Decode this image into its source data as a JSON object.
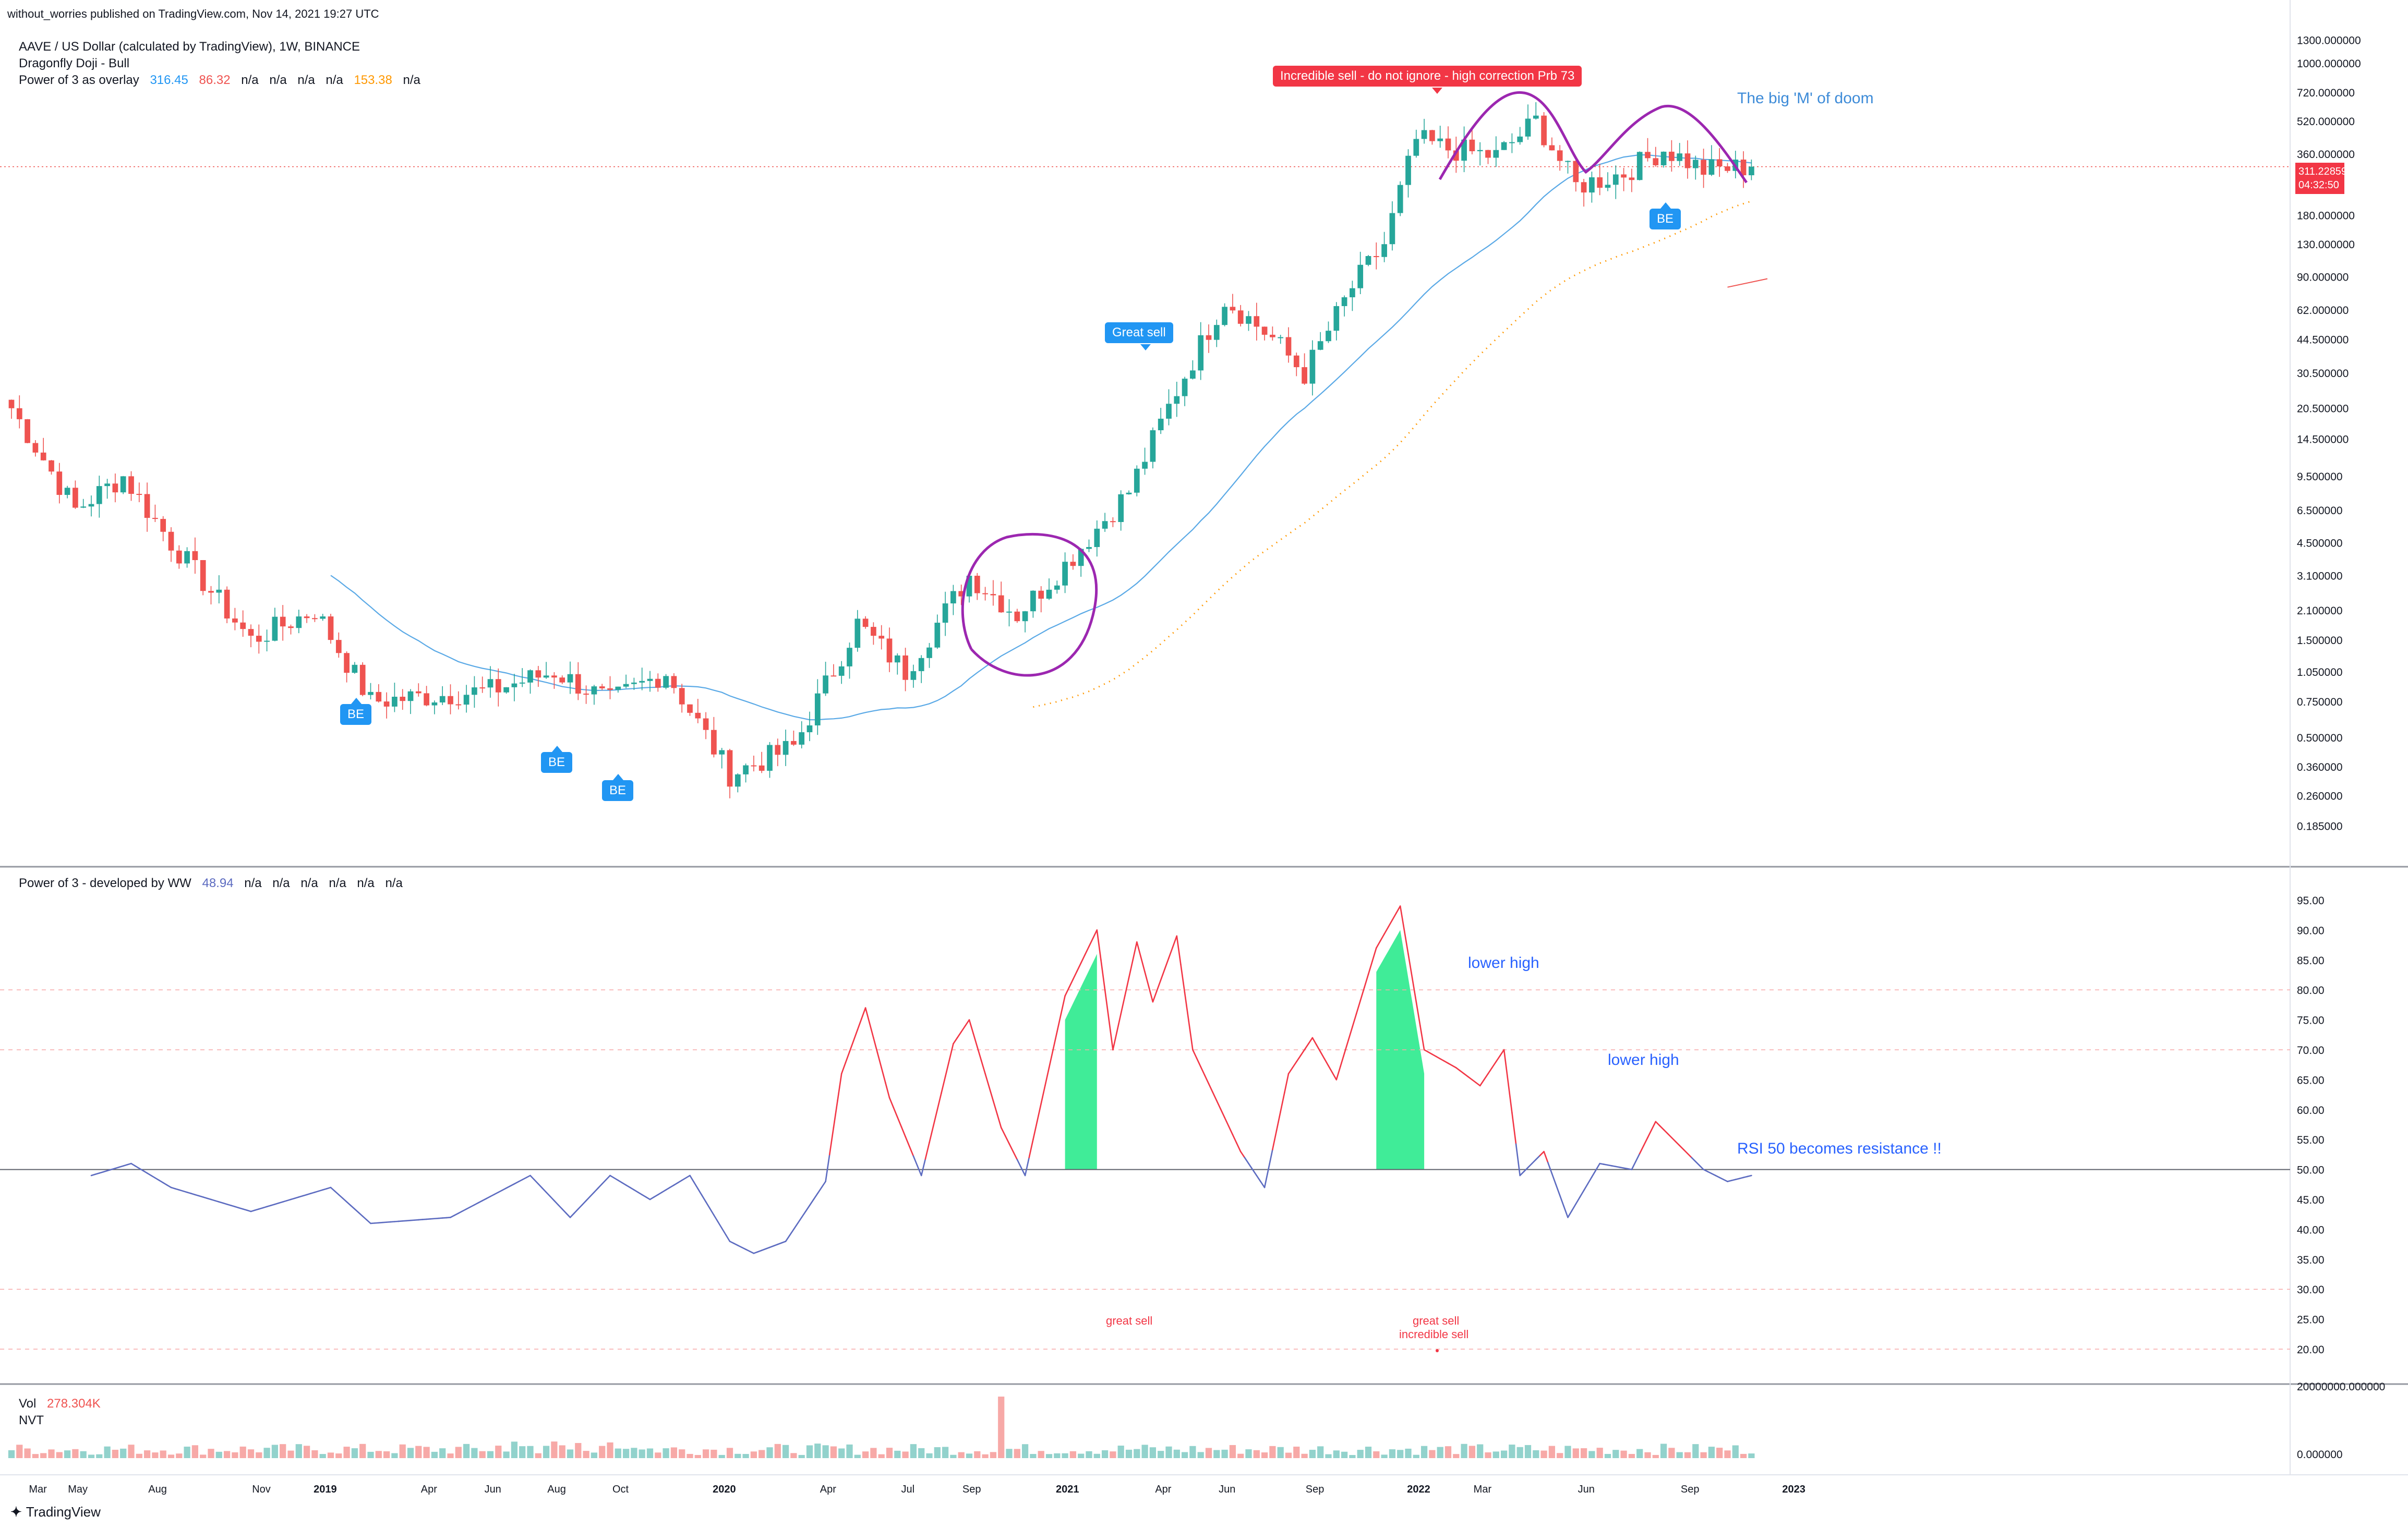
{
  "published_by": "without_worries published on TradingView.com, Nov 14, 2021 19:27 UTC",
  "legend": {
    "symbol_line": "AAVE / US Dollar (calculated by TradingView), 1W, BINANCE",
    "pattern_line": "Dragonfly Doji - Bull",
    "overlay_label": "Power of 3 as overlay",
    "overlay_values": [
      "316.45",
      "86.32",
      "n/a",
      "n/a",
      "n/a",
      "n/a",
      "153.38",
      "n/a"
    ],
    "osc_label": "Power of 3 - developed by WW",
    "osc_values": [
      "48.94",
      "n/a",
      "n/a",
      "n/a",
      "n/a",
      "n/a",
      "n/a"
    ],
    "vol_label": "Vol",
    "vol_value": "278.304K",
    "nvt_label": "NVT"
  },
  "price_tag": {
    "price": "311.228593",
    "countdown": "04:32:50"
  },
  "annotations": {
    "big_m": "The big 'M' of doom",
    "incredible_sell_tag": "Incredible sell - do not ignore - high correction Prb   73",
    "great_sell_tag": "Great sell",
    "be_label": "BE",
    "lower_high_1": "lower high",
    "lower_high_2": "lower high",
    "rsi_resistance": "RSI 50 becomes resistance !!",
    "osc_great_sell": "great sell",
    "osc_great_sell_2": "great sell",
    "osc_incredible_sell": "incredible sell"
  },
  "branding": {
    "logo_text": "TradingView"
  },
  "colors": {
    "up": "#26a69a",
    "down": "#ef5350",
    "ma": "#5aa9e6",
    "dotted": "#ff9800",
    "purple": "#9c27b0",
    "osc_hot": "#f23645",
    "osc_cool": "#5c6bc0",
    "blue_text": "#2962ff",
    "tag_blue": "#2196f3",
    "tag_red": "#f23645"
  },
  "chart_data": [
    {
      "type": "candlestick",
      "title": "AAVE / US Dollar (calculated by TradingView), 1W, BINANCE",
      "y_scale": "log",
      "y_ticks": [
        "1300.000000",
        "1000.000000",
        "720.000000",
        "520.000000",
        "360.000000",
        "180.000000",
        "130.000000",
        "90.000000",
        "62.000000",
        "44.500000",
        "30.500000",
        "20.500000",
        "14.500000",
        "9.500000",
        "6.500000",
        "4.500000",
        "3.100000",
        "2.100000",
        "1.500000",
        "1.050000",
        "0.750000",
        "0.500000",
        "0.360000",
        "0.260000",
        "0.185000"
      ],
      "x_ticks": [
        "Mar",
        "May",
        "Aug",
        "Nov",
        "2019",
        "Apr",
        "Jun",
        "Aug",
        "Oct",
        "2020",
        "Apr",
        "Jul",
        "Sep",
        "2021",
        "Apr",
        "Jun",
        "Sep",
        "2022",
        "Mar",
        "Jun",
        "Sep",
        "2023"
      ],
      "bars_per_x_tick": [
        5,
        10,
        13,
        8,
        13,
        8,
        8,
        8,
        13,
        13,
        10,
        8,
        12,
        12,
        8,
        11,
        13,
        8,
        13,
        13,
        13
      ],
      "close_anchors": [
        {
          "week": 0,
          "close": 20.5
        },
        {
          "week": 8,
          "close": 6.5
        },
        {
          "week": 14,
          "close": 9.5
        },
        {
          "week": 20,
          "close": 4.5
        },
        {
          "week": 30,
          "close": 1.5
        },
        {
          "week": 38,
          "close": 2.1
        },
        {
          "week": 45,
          "close": 0.75
        },
        {
          "week": 60,
          "close": 0.85
        },
        {
          "week": 68,
          "close": 1.05
        },
        {
          "week": 75,
          "close": 0.75
        },
        {
          "week": 82,
          "close": 1.05
        },
        {
          "week": 90,
          "close": 0.33
        },
        {
          "week": 98,
          "close": 0.45
        },
        {
          "week": 106,
          "close": 1.8
        },
        {
          "week": 112,
          "close": 1.05
        },
        {
          "week": 120,
          "close": 3.1
        },
        {
          "week": 126,
          "close": 2.0
        },
        {
          "week": 132,
          "close": 3.5
        },
        {
          "week": 140,
          "close": 8.0
        },
        {
          "week": 146,
          "close": 25.0
        },
        {
          "week": 152,
          "close": 70.0
        },
        {
          "week": 158,
          "close": 45.0
        },
        {
          "week": 162,
          "close": 30.0
        },
        {
          "week": 168,
          "close": 80.0
        },
        {
          "week": 172,
          "close": 130.0
        },
        {
          "week": 176,
          "close": 420.0
        },
        {
          "week": 180,
          "close": 380.0
        },
        {
          "week": 186,
          "close": 350.0
        },
        {
          "week": 191,
          "close": 520.0
        },
        {
          "week": 196,
          "close": 250.0
        },
        {
          "week": 202,
          "close": 290.0
        },
        {
          "week": 207,
          "close": 380.0
        },
        {
          "week": 212,
          "close": 300.0
        },
        {
          "week": 218,
          "close": 311.0
        }
      ],
      "last_close": 311.228593,
      "series": [
        {
          "name": "Power of 3 as overlay",
          "value": 316.45
        },
        {
          "name": "Power of 3 as overlay (2)",
          "value": 86.32
        },
        {
          "name": "Power of 3 as overlay (7)",
          "value": 153.38
        }
      ]
    },
    {
      "type": "line",
      "title": "Power of 3 - developed by WW",
      "y_ticks": [
        95,
        90,
        85,
        80,
        75,
        70,
        65,
        60,
        55,
        50,
        45,
        40,
        35,
        30,
        25,
        20
      ],
      "ylim": [
        18,
        97
      ],
      "reference_lines": [
        80,
        70,
        50,
        30,
        20
      ],
      "anchors": [
        {
          "week": 10,
          "value": 49
        },
        {
          "week": 15,
          "value": 51
        },
        {
          "week": 20,
          "value": 47
        },
        {
          "week": 30,
          "value": 43
        },
        {
          "week": 40,
          "value": 47
        },
        {
          "week": 45,
          "value": 41
        },
        {
          "week": 55,
          "value": 42
        },
        {
          "week": 65,
          "value": 49
        },
        {
          "week": 70,
          "value": 42
        },
        {
          "week": 75,
          "value": 49
        },
        {
          "week": 80,
          "value": 45
        },
        {
          "week": 85,
          "value": 49
        },
        {
          "week": 90,
          "value": 38
        },
        {
          "week": 93,
          "value": 36
        },
        {
          "week": 97,
          "value": 38
        },
        {
          "week": 102,
          "value": 48
        },
        {
          "week": 104,
          "value": 66
        },
        {
          "week": 107,
          "value": 77
        },
        {
          "week": 110,
          "value": 62
        },
        {
          "week": 114,
          "value": 49
        },
        {
          "week": 118,
          "value": 71
        },
        {
          "week": 120,
          "value": 75
        },
        {
          "week": 124,
          "value": 57
        },
        {
          "week": 127,
          "value": 49
        },
        {
          "week": 132,
          "value": 79
        },
        {
          "week": 136,
          "value": 90
        },
        {
          "week": 138,
          "value": 70
        },
        {
          "week": 141,
          "value": 88
        },
        {
          "week": 143,
          "value": 78
        },
        {
          "week": 146,
          "value": 89
        },
        {
          "week": 148,
          "value": 70
        },
        {
          "week": 154,
          "value": 53
        },
        {
          "week": 157,
          "value": 47
        },
        {
          "week": 160,
          "value": 66
        },
        {
          "week": 163,
          "value": 72
        },
        {
          "week": 166,
          "value": 65
        },
        {
          "week": 171,
          "value": 87
        },
        {
          "week": 174,
          "value": 94
        },
        {
          "week": 177,
          "value": 70
        },
        {
          "week": 181,
          "value": 67
        },
        {
          "week": 184,
          "value": 64
        },
        {
          "week": 187,
          "value": 70
        },
        {
          "week": 189,
          "value": 49
        },
        {
          "week": 192,
          "value": 53
        },
        {
          "week": 195,
          "value": 42
        },
        {
          "week": 199,
          "value": 51
        },
        {
          "week": 203,
          "value": 50
        },
        {
          "week": 206,
          "value": 58
        },
        {
          "week": 209,
          "value": 54
        },
        {
          "week": 212,
          "value": 50
        },
        {
          "week": 215,
          "value": 48
        },
        {
          "week": 218,
          "value": 49
        }
      ],
      "last_value": 48.94
    },
    {
      "type": "bar",
      "title": "Vol",
      "y_ticks": [
        "20000000.000000",
        "0.000000"
      ],
      "last_value": "278.304K"
    }
  ]
}
